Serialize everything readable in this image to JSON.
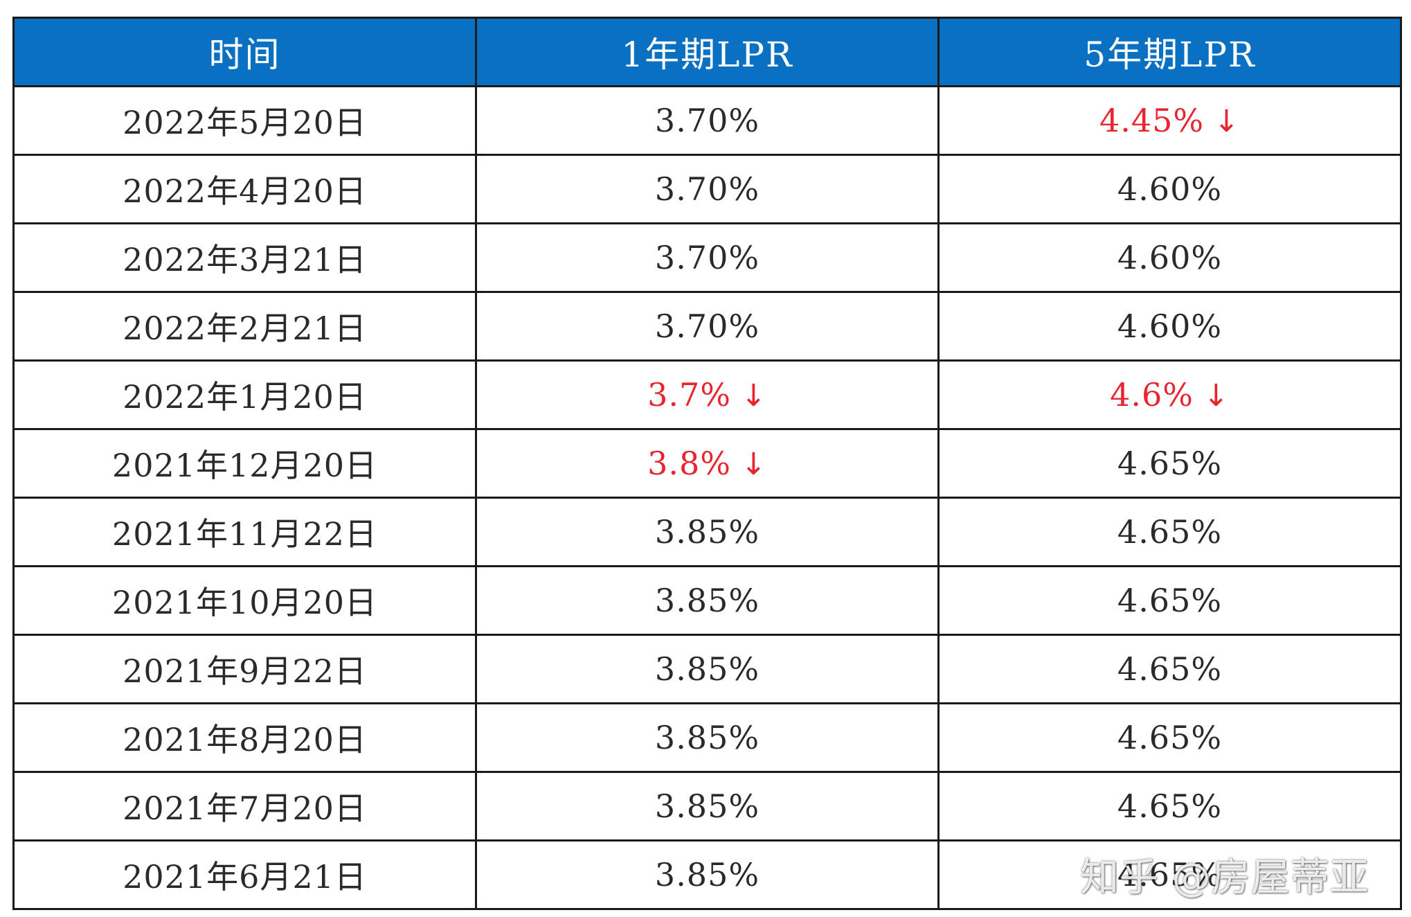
{
  "table": {
    "headers": [
      "时间",
      "1年期LPR",
      "5年期LPR"
    ],
    "rows": [
      {
        "date": "2022年5月20日",
        "lpr1y": "3.70%",
        "lpr1y_down": false,
        "lpr5y": "4.45%",
        "lpr5y_down": true
      },
      {
        "date": "2022年4月20日",
        "lpr1y": "3.70%",
        "lpr1y_down": false,
        "lpr5y": "4.60%",
        "lpr5y_down": false
      },
      {
        "date": "2022年3月21日",
        "lpr1y": "3.70%",
        "lpr1y_down": false,
        "lpr5y": "4.60%",
        "lpr5y_down": false
      },
      {
        "date": "2022年2月21日",
        "lpr1y": "3.70%",
        "lpr1y_down": false,
        "lpr5y": "4.60%",
        "lpr5y_down": false
      },
      {
        "date": "2022年1月20日",
        "lpr1y": "3.7%",
        "lpr1y_down": true,
        "lpr5y": "4.6%",
        "lpr5y_down": true
      },
      {
        "date": "2021年12月20日",
        "lpr1y": "3.8%",
        "lpr1y_down": true,
        "lpr5y": "4.65%",
        "lpr5y_down": false
      },
      {
        "date": "2021年11月22日",
        "lpr1y": "3.85%",
        "lpr1y_down": false,
        "lpr5y": "4.65%",
        "lpr5y_down": false
      },
      {
        "date": "2021年10月20日",
        "lpr1y": "3.85%",
        "lpr1y_down": false,
        "lpr5y": "4.65%",
        "lpr5y_down": false
      },
      {
        "date": "2021年9月22日",
        "lpr1y": "3.85%",
        "lpr1y_down": false,
        "lpr5y": "4.65%",
        "lpr5y_down": false
      },
      {
        "date": "2021年8月20日",
        "lpr1y": "3.85%",
        "lpr1y_down": false,
        "lpr5y": "4.65%",
        "lpr5y_down": false
      },
      {
        "date": "2021年7月20日",
        "lpr1y": "3.85%",
        "lpr1y_down": false,
        "lpr5y": "4.65%",
        "lpr5y_down": false
      },
      {
        "date": "2021年6月21日",
        "lpr1y": "3.85%",
        "lpr1y_down": false,
        "lpr5y": "4.65%",
        "lpr5y_down": false
      }
    ],
    "down_arrow": "↓"
  },
  "watermark": "知乎 @房屋蒂亚",
  "colors": {
    "header_bg": "#0a70c2",
    "header_text": "#ffffff",
    "down_text": "#e8242e",
    "body_text": "#2a2a2a",
    "border": "#1a1a1a"
  }
}
